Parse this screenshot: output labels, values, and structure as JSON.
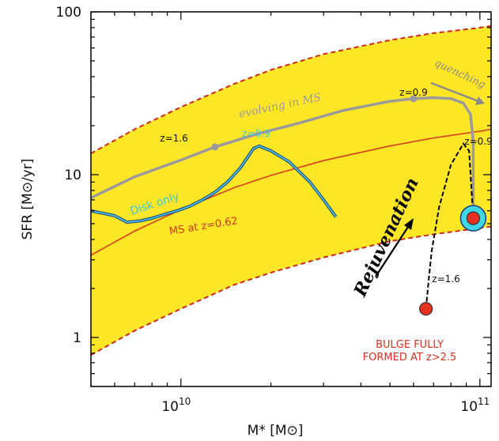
{
  "chart_data": {
    "type": "line",
    "title": "",
    "xlabel": "M* [M⊙]",
    "ylabel": "SFR [M⊙/yr]",
    "xscale": "log",
    "yscale": "log",
    "xlim": [
      5000000000.0,
      109000000000.0
    ],
    "ylim": [
      0.5,
      100
    ],
    "x_ticks": [
      {
        "value": 10000000000.0,
        "base": "10",
        "exp": "10"
      },
      {
        "value": 100000000000.0,
        "base": "10",
        "exp": "11"
      }
    ],
    "y_ticks": [
      {
        "value": 1,
        "label": "1"
      },
      {
        "value": 10,
        "label": "10"
      },
      {
        "value": 100,
        "label": "100"
      }
    ],
    "grid": false,
    "colors": {
      "band": "#ffe626",
      "band_edge": "#cc2a1e",
      "ms_line": "#d64020",
      "gray_track": "#9a9a9a",
      "disk_track_outer": "#1e3c78",
      "disk_track_inner": "#44c4e6",
      "black_track": "#000000",
      "point_red": "#e63020",
      "point_cyan": "#3fd6e6",
      "rejuv_text": "#000000",
      "bulge_text": "#d93020",
      "ms_label": "#cc3a1a",
      "disk_label": "#3ac8e0"
    },
    "series": [
      {
        "role": "ms_band_upper",
        "x": [
          5000000000.0,
          7000000000.0,
          10000000000.0,
          15000000000.0,
          20000000000.0,
          30000000000.0,
          50000000000.0,
          70000000000.0,
          100000000000.0,
          109000000000.0
        ],
        "y": [
          13.5,
          19,
          26,
          36,
          44,
          55,
          67,
          74,
          80,
          82
        ]
      },
      {
        "role": "ms_band_lower",
        "x": [
          5000000000.0,
          7000000000.0,
          10000000000.0,
          15000000000.0,
          20000000000.0,
          30000000000.0,
          50000000000.0,
          70000000000.0,
          100000000000.0,
          109000000000.0
        ],
        "y": [
          0.78,
          1.1,
          1.5,
          2.1,
          2.5,
          3.1,
          3.9,
          4.3,
          4.7,
          4.8
        ]
      },
      {
        "name": "MS at z=0.62",
        "role": "ms_line",
        "x": [
          5000000000.0,
          7000000000.0,
          10000000000.0,
          15000000000.0,
          20000000000.0,
          30000000000.0,
          50000000000.0,
          70000000000.0,
          100000000000.0,
          109000000000.0
        ],
        "y": [
          3.2,
          4.5,
          6.1,
          8.3,
          9.9,
          12.2,
          15,
          16.8,
          18.5,
          19
        ]
      },
      {
        "role": "evolving_in_MS",
        "x": [
          5000000000.0,
          7000000000.0,
          10000000000.0,
          13000000000.0,
          18000000000.0,
          25000000000.0,
          35000000000.0,
          50000000000.0,
          60000000000.0,
          70000000000.0,
          80000000000.0,
          88000000000.0,
          93000000000.0,
          95000000000.0,
          95000000000.0
        ],
        "y": [
          7.2,
          9.7,
          12.3,
          14.8,
          17.8,
          20.8,
          24.8,
          28.2,
          29.3,
          29.7,
          29.3,
          27.5,
          23.5,
          16,
          5.4
        ]
      },
      {
        "role": "disk_only",
        "x": [
          5000000000.0,
          6000000000.0,
          6600000000.0,
          7300000000.0,
          8000000000.0,
          8800000000.0,
          9700000000.0,
          10700000000.0,
          11800000000.0,
          13000000000.0,
          14300000000.0,
          15800000000.0,
          17500000000.0,
          18300000000.0,
          20000000000.0,
          23000000000.0,
          27000000000.0,
          30000000000.0,
          33000000000.0
        ],
        "y": [
          6.0,
          5.6,
          5.1,
          5.2,
          5.4,
          5.7,
          6.0,
          6.4,
          7.0,
          7.8,
          9.0,
          11.0,
          14.5,
          15.0,
          14.0,
          12.0,
          9.0,
          7.0,
          5.5
        ]
      },
      {
        "role": "rejuvenation",
        "x": [
          66000000000.0,
          67500000000.0,
          69000000000.0,
          73000000000.0,
          80000000000.0,
          88000000000.0,
          92000000000.0,
          95000000000.0
        ],
        "y": [
          1.5,
          2.3,
          3.4,
          6.3,
          11.5,
          15.5,
          14.0,
          5.4
        ]
      }
    ],
    "markers": [
      {
        "x": 13000000000.0,
        "y": 14.8,
        "label": "z=1.6",
        "style": "gray"
      },
      {
        "x": 60000000000.0,
        "y": 29.3,
        "label": "z=0.9",
        "style": "gray"
      },
      {
        "x": 66000000000.0,
        "y": 1.5,
        "label": "",
        "style": "red"
      },
      {
        "x": 95000000000.0,
        "y": 5.4,
        "label": "",
        "style": "red_cyan"
      }
    ],
    "annotations": {
      "evolving": "evolving in MS",
      "quenching": "quenching",
      "disk_only": "Disk only",
      "disk_z": "z=0.9",
      "ms_label": "MS at z=0.62",
      "rejuvenation": "Rejuvenation",
      "black_z16": "z=1.6",
      "black_z09": "z=0.9",
      "bulge_line1": "BULGE FULLY",
      "bulge_line2": "FORMED AT z>2.5"
    }
  }
}
